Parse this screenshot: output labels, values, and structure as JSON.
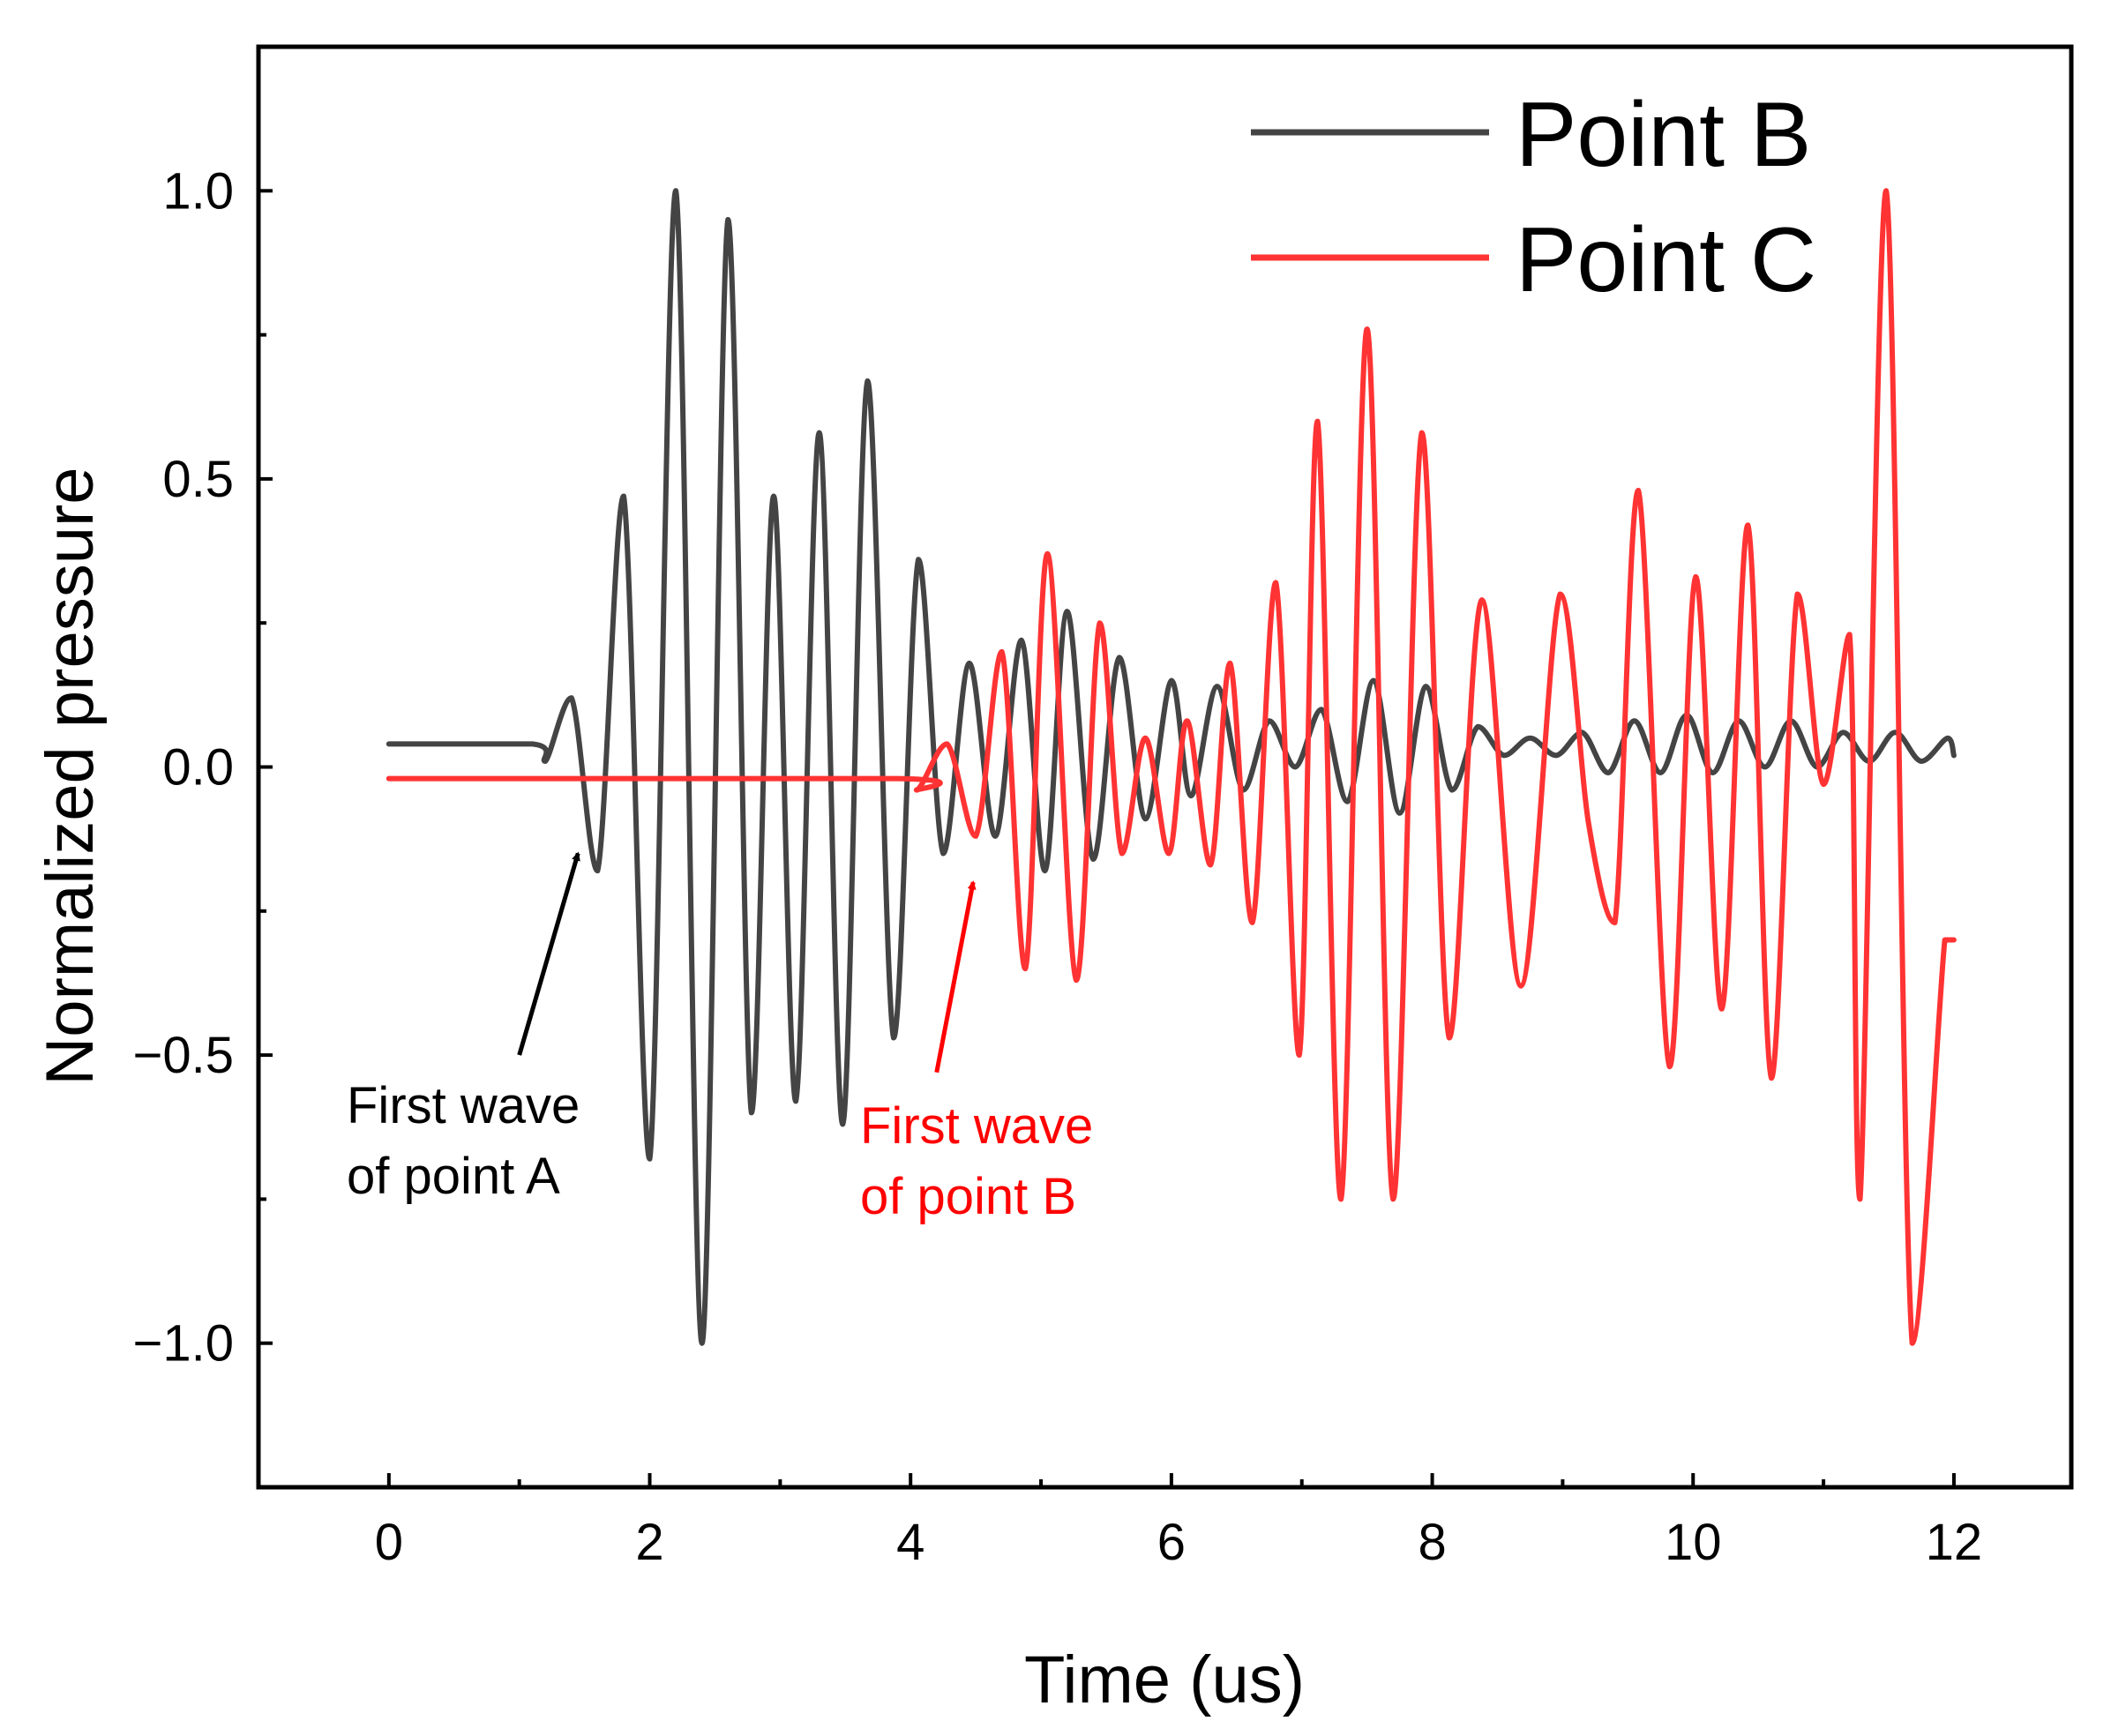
{
  "chart_data": {
    "type": "line",
    "title": "",
    "xlabel": "Time (us)",
    "ylabel": "Normalized pressure",
    "xlim": [
      -1,
      12.9
    ],
    "ylim": [
      -1.25,
      1.25
    ],
    "xticks": [
      0,
      2,
      4,
      6,
      8,
      10,
      12
    ],
    "xtick_labels": [
      "0",
      "2",
      "4",
      "6",
      "8",
      "10",
      "12"
    ],
    "yticks": [
      1.0,
      0.5,
      0.0,
      -0.5,
      -1.0
    ],
    "ytick_labels": [
      "1.0",
      "0.5",
      "0.0",
      "−0.5",
      "−1.0"
    ],
    "grid": false,
    "legend_position": "top-right",
    "series": [
      {
        "name": "Point B",
        "color": "#444444",
        "x": [
          0,
          1.1,
          1.2,
          1.4,
          1.6,
          1.8,
          2.0,
          2.2,
          2.4,
          2.6,
          2.78,
          2.95,
          3.12,
          3.3,
          3.48,
          3.67,
          3.87,
          4.06,
          4.25,
          4.45,
          4.65,
          4.85,
          5.03,
          5.2,
          5.4,
          5.6,
          5.8,
          6.0,
          6.15,
          6.35,
          6.55,
          6.75,
          6.95,
          7.15,
          7.35,
          7.55,
          7.75,
          7.95,
          8.15,
          8.35,
          8.55,
          8.75,
          8.95,
          9.15,
          9.35,
          9.55,
          9.75,
          9.95,
          10.15,
          10.35,
          10.55,
          10.75,
          10.95,
          11.15,
          11.35,
          11.55,
          11.75,
          11.95,
          12.0
        ],
        "y": [
          0.04,
          0.04,
          0.01,
          0.12,
          -0.18,
          0.47,
          -0.68,
          1.0,
          -1.0,
          0.95,
          -0.6,
          0.47,
          -0.58,
          0.58,
          -0.62,
          0.67,
          -0.47,
          0.36,
          -0.15,
          0.18,
          -0.12,
          0.22,
          -0.18,
          0.27,
          -0.16,
          0.19,
          -0.09,
          0.15,
          -0.05,
          0.14,
          -0.04,
          0.08,
          0.0,
          0.1,
          -0.06,
          0.15,
          -0.08,
          0.14,
          -0.04,
          0.07,
          0.02,
          0.05,
          0.02,
          0.06,
          -0.01,
          0.08,
          -0.01,
          0.09,
          -0.01,
          0.08,
          0.0,
          0.08,
          0.0,
          0.06,
          0.01,
          0.06,
          0.01,
          0.05,
          0.02
        ]
      },
      {
        "name": "Point C",
        "color": "#ff3333",
        "x": [
          0,
          3.9,
          4.05,
          4.28,
          4.5,
          4.7,
          4.88,
          5.05,
          5.27,
          5.45,
          5.62,
          5.8,
          5.98,
          6.12,
          6.3,
          6.45,
          6.62,
          6.8,
          6.98,
          7.12,
          7.3,
          7.5,
          7.7,
          7.92,
          8.13,
          8.38,
          8.68,
          8.98,
          9.2,
          9.4,
          9.58,
          9.82,
          10.02,
          10.22,
          10.42,
          10.6,
          10.8,
          11.0,
          11.2,
          11.28,
          11.48,
          11.68,
          11.93,
          12.0
        ],
        "y": [
          -0.02,
          -0.02,
          -0.04,
          0.04,
          -0.12,
          0.2,
          -0.35,
          0.37,
          -0.37,
          0.25,
          -0.15,
          0.05,
          -0.15,
          0.08,
          -0.17,
          0.18,
          -0.27,
          0.32,
          -0.5,
          0.6,
          -0.75,
          0.76,
          -0.75,
          0.58,
          -0.47,
          0.29,
          -0.38,
          0.3,
          -0.1,
          -0.27,
          0.48,
          -0.52,
          0.33,
          -0.42,
          0.42,
          -0.54,
          0.3,
          -0.03,
          0.23,
          -0.75,
          1.0,
          -1.0,
          -0.3,
          -0.3
        ]
      }
    ],
    "annotations": [
      {
        "text_lines": [
          "First wave",
          "of point A"
        ],
        "color": "#000000",
        "arrow_from": [
          1.0,
          -0.5
        ],
        "arrow_to": [
          1.45,
          -0.15
        ]
      },
      {
        "text_lines": [
          "First wave",
          "of point B"
        ],
        "color": "#ff0000",
        "arrow_from": [
          4.2,
          -0.53
        ],
        "arrow_to": [
          4.48,
          -0.2
        ]
      }
    ]
  }
}
